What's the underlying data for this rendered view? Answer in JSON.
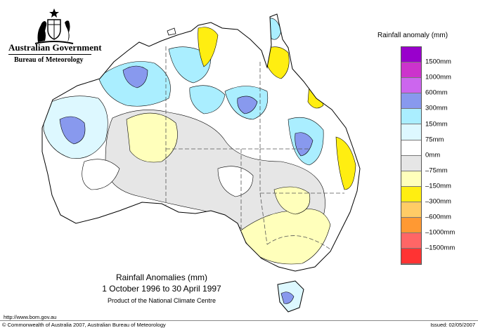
{
  "header": {
    "government": "Australian Government",
    "bureau": "Bureau of Meteorology"
  },
  "legend": {
    "title": "Rainfall anomaly (mm)",
    "items": [
      {
        "label": "1500mm",
        "color": "#9900cc"
      },
      {
        "label": "1000mm",
        "color": "#cc33cc"
      },
      {
        "label": "600mm",
        "color": "#cc66ee"
      },
      {
        "label": "300mm",
        "color": "#8899ee"
      },
      {
        "label": "150mm",
        "color": "#aaeeff"
      },
      {
        "label": "75mm",
        "color": "#ddf8ff"
      },
      {
        "label": "0mm",
        "color": "#ffffff"
      },
      {
        "label": "–75mm",
        "color": "#e6e6e6"
      },
      {
        "label": "–150mm",
        "color": "#ffffbb"
      },
      {
        "label": "–300mm",
        "color": "#ffee11"
      },
      {
        "label": "–600mm",
        "color": "#ffcc66"
      },
      {
        "label": "–1000mm",
        "color": "#ff9933"
      },
      {
        "label": "–1500mm",
        "color": "#ff6666"
      },
      {
        "label": "",
        "color": "#ff3333"
      }
    ]
  },
  "caption": {
    "title": "Rainfall Anomalies (mm)",
    "period": "1 October 1996 to 30 April 1997",
    "product": "Product of the National Climate Centre"
  },
  "footer": {
    "url": "http://www.bom.gov.au",
    "copyright": "© Commonwealth of Australia 2007, Australian Bureau of Meteorology",
    "issued": "Issued: 02/05/2007"
  }
}
